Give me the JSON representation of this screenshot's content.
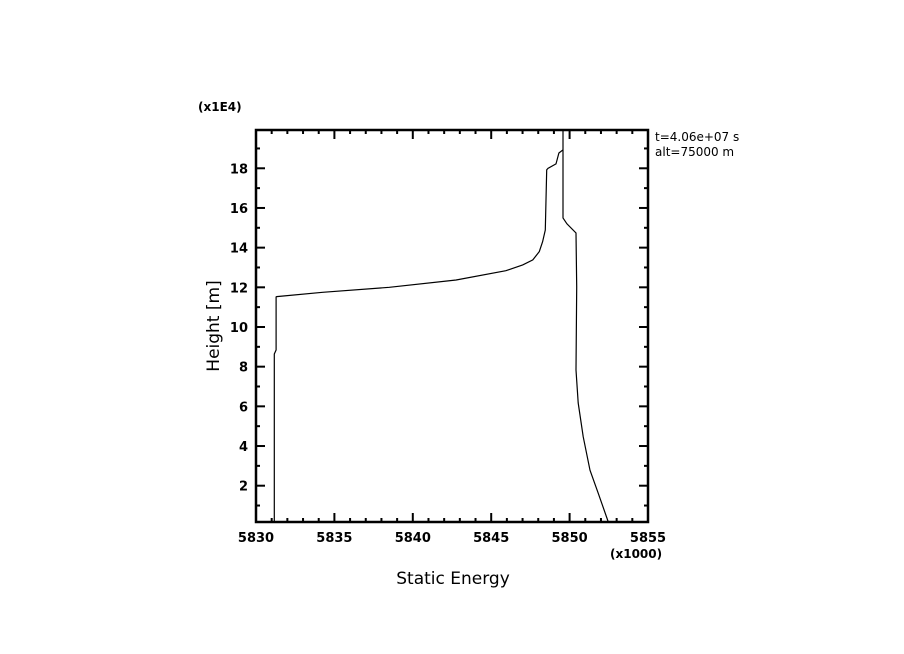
{
  "chart_data": {
    "type": "line",
    "xlabel": "Static Energy",
    "ylabel": "Height [m]",
    "x_multiplier_label": "(x1000)",
    "y_multiplier_label": "(x1E4)",
    "xlim": [
      5830,
      5855
    ],
    "ylim": [
      0.17,
      19.93
    ],
    "x_ticks": [
      5830,
      5835,
      5840,
      5845,
      5850,
      5855
    ],
    "x_tick_labels": [
      "5830",
      "5835",
      "5840",
      "5845",
      "5850",
      "5855"
    ],
    "y_ticks": [
      2,
      4,
      6,
      8,
      10,
      12,
      14,
      16,
      18
    ],
    "y_tick_labels": [
      "2",
      "4",
      "6",
      "8",
      "10",
      "12",
      "14",
      "16",
      "18"
    ],
    "grid": false,
    "annotations": [
      "t=4.06e+07 s",
      "alt=75000 m"
    ],
    "line_color": "#000000",
    "series": [
      {
        "x": [
          5831.17,
          5831.17,
          5831.28,
          5831.28,
          5831.32,
          5834.25,
          5838.5,
          5842.76,
          5845.94,
          5847.01,
          5847.65,
          5848.07,
          5848.28,
          5848.45,
          5848.54,
          5848.62,
          5849.13,
          5849.32,
          5849.58,
          5849.58,
          5849.58,
          5849.83,
          5850.41,
          5850.45,
          5850.41,
          5850.55,
          5850.87,
          5851.3,
          5851.83,
          5852.47
        ],
        "y": [
          0.17,
          8.64,
          8.84,
          11.51,
          11.53,
          11.75,
          12.0,
          12.37,
          12.84,
          13.13,
          13.38,
          13.8,
          14.3,
          14.89,
          17.92,
          18.0,
          18.22,
          18.77,
          18.93,
          19.93,
          15.5,
          15.2,
          14.74,
          12.03,
          7.83,
          6.17,
          4.47,
          2.78,
          1.61,
          0.17
        ]
      }
    ]
  }
}
